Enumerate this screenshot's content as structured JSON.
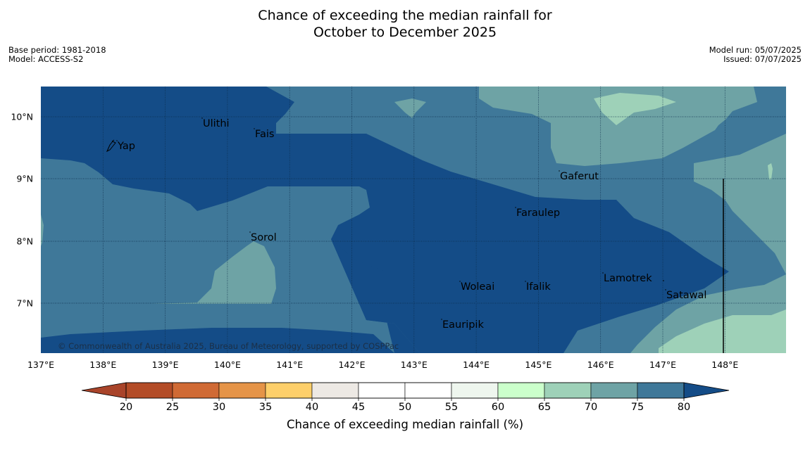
{
  "title_line1": "Chance of exceeding the median rainfall for",
  "title_line2": "October to December 2025",
  "meta_left": [
    "Base period: 1981-2018",
    "Model: ACCESS-S2"
  ],
  "meta_right": [
    "Model run: 05/07/2025",
    "Issued: 07/07/2025"
  ],
  "copyright": "© Commonwealth of Australia 2025, Bureau of Meteorology, supported by COSPPac",
  "lat_labels": [
    "10°N",
    "9°N",
    "8°N",
    "7°N"
  ],
  "lon_labels": [
    "137°E",
    "138°E",
    "139°E",
    "140°E",
    "141°E",
    "142°E",
    "143°E",
    "144°E",
    "145°E",
    "146°E",
    "147°E",
    "148°E"
  ],
  "places": [
    "Ulithi",
    "Yap",
    "Fais",
    "Gaferut",
    "Faraulep",
    "Sorol",
    "Lamotrek",
    "Woleai",
    "Ifalik",
    "Satawal",
    "Eauripik"
  ],
  "colorbar": {
    "title": "Chance of exceeding median rainfall (%)",
    "ticks": [
      "20",
      "25",
      "30",
      "35",
      "40",
      "45",
      "50",
      "55",
      "60",
      "65",
      "70",
      "75",
      "80"
    ],
    "colors": [
      "#b34c27",
      "#d06a35",
      "#e59448",
      "#fdcf6a",
      "#ede9e4",
      "#ffffff",
      "#ffffff",
      "#eef6ee",
      "#cbffcb",
      "#9ed1b8",
      "#6ea3a5",
      "#3f7899"
    ],
    "under_color": "#a9442a",
    "over_color": "#144c87"
  },
  "colors": {
    "p75_80": "#3f7899",
    "p80plus": "#144c87",
    "p70_75": "#6ea3a5",
    "p65_70": "#9ed1b8"
  }
}
